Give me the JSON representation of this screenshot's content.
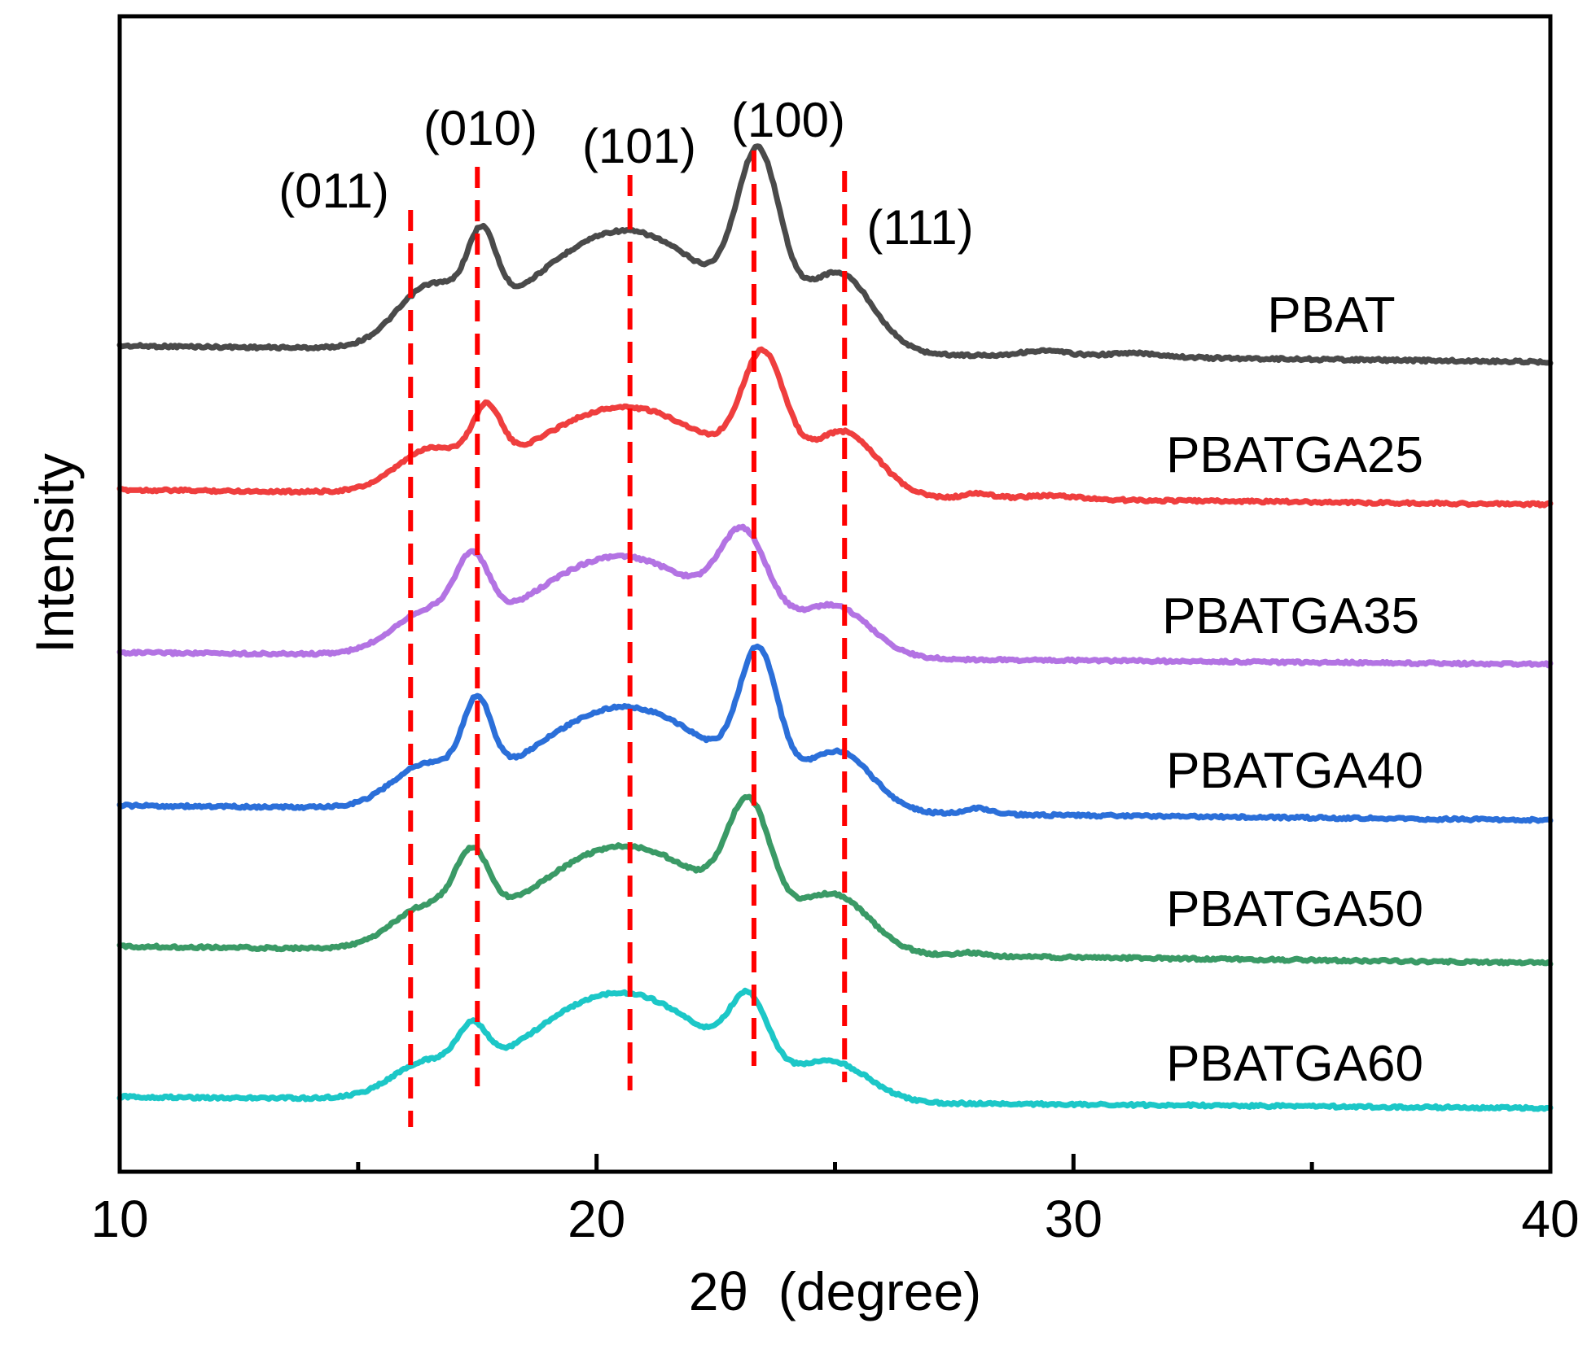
{
  "chart_data": {
    "type": "line",
    "title": "",
    "xlabel": "2θ  (degree)",
    "ylabel": "Intensity",
    "xlim": [
      10,
      40
    ],
    "x_ticks": [
      10,
      20,
      30,
      40
    ],
    "x_minor_ticks": [
      15,
      25,
      35
    ],
    "x_tick_labels": [
      "10",
      "20",
      "30",
      "40"
    ],
    "y_ticks_shown": false,
    "grid": false,
    "legend": "none",
    "offset_units": "arbitrary",
    "x_range_sampled": [
      10,
      40
    ],
    "peak_model": "baseline (start→end linear) + sum of gaussian bumps",
    "series": [
      {
        "name": "PBAT",
        "color": "#4a4a4a",
        "baseline": [
          0.0,
          -0.12
        ],
        "peaks": [
          [
            16.5,
            0.4,
            0.7
          ],
          [
            17.6,
            0.55,
            0.3
          ],
          [
            20.6,
            0.9,
            1.9
          ],
          [
            23.4,
            1.2,
            0.45
          ],
          [
            25.1,
            0.55,
            0.7
          ],
          [
            29.4,
            0.04,
            0.5
          ],
          [
            31.3,
            0.03,
            0.6
          ]
        ]
      },
      {
        "name": "PBATGA25",
        "color": "#ef3e3e",
        "baseline": [
          0.0,
          -0.12
        ],
        "peaks": [
          [
            16.5,
            0.3,
            0.7
          ],
          [
            17.7,
            0.45,
            0.3
          ],
          [
            20.6,
            0.72,
            1.9
          ],
          [
            23.5,
            0.95,
            0.45
          ],
          [
            25.2,
            0.5,
            0.7
          ],
          [
            28.0,
            0.04,
            0.3
          ],
          [
            29.5,
            0.03,
            0.6
          ]
        ]
      },
      {
        "name": "PBATGA35",
        "color": "#b373e3",
        "baseline": [
          0.0,
          -0.1
        ],
        "peaks": [
          [
            16.4,
            0.3,
            0.7
          ],
          [
            17.4,
            0.55,
            0.35
          ],
          [
            20.5,
            0.85,
            1.9
          ],
          [
            23.1,
            0.75,
            0.5
          ],
          [
            25.0,
            0.4,
            0.75
          ]
        ]
      },
      {
        "name": "PBATGA40",
        "color": "#2b6fd9",
        "baseline": [
          0.0,
          -0.12
        ],
        "peaks": [
          [
            16.4,
            0.3,
            0.7
          ],
          [
            17.5,
            0.62,
            0.3
          ],
          [
            20.6,
            0.85,
            1.9
          ],
          [
            23.4,
            1.05,
            0.4
          ],
          [
            25.1,
            0.45,
            0.7
          ],
          [
            28.0,
            0.05,
            0.3
          ]
        ]
      },
      {
        "name": "PBATGA50",
        "color": "#3a9a66",
        "baseline": [
          0.0,
          -0.14
        ],
        "peaks": [
          [
            16.4,
            0.3,
            0.7
          ],
          [
            17.4,
            0.55,
            0.35
          ],
          [
            20.6,
            0.9,
            1.9
          ],
          [
            23.2,
            0.95,
            0.45
          ],
          [
            25.0,
            0.45,
            0.75
          ],
          [
            27.8,
            0.03,
            0.3
          ]
        ]
      },
      {
        "name": "PBATGA60",
        "color": "#1cc7c7",
        "baseline": [
          0.0,
          -0.1
        ],
        "peaks": [
          [
            16.4,
            0.25,
            0.7
          ],
          [
            17.4,
            0.35,
            0.3
          ],
          [
            20.5,
            0.95,
            1.9
          ],
          [
            23.2,
            0.6,
            0.4
          ],
          [
            25.0,
            0.3,
            0.75
          ]
        ]
      }
    ],
    "reference_lines": [
      {
        "label": "(011)",
        "x": 16.1
      },
      {
        "label": "(010)",
        "x": 17.5
      },
      {
        "label": "(101)",
        "x": 20.7
      },
      {
        "label": "(100)",
        "x": 23.3
      },
      {
        "label": "(111)",
        "x": 25.2
      }
    ],
    "reference_line_color": "#ff0000"
  }
}
